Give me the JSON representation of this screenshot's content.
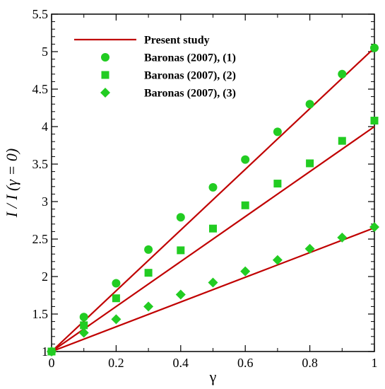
{
  "chart_data": {
    "type": "line",
    "xlabel": "γ",
    "ylabel": "I / I (γ = 0)",
    "xlim": [
      0,
      1
    ],
    "ylim": [
      1,
      5.5
    ],
    "grid": false,
    "legend_position": "top-left",
    "x_ticks": [
      0,
      0.2,
      0.4,
      0.6,
      0.8,
      1
    ],
    "x_tick_labels": [
      "0",
      "0.2",
      "0.4",
      "0.6",
      "0.8",
      "1"
    ],
    "y_ticks": [
      1,
      1.5,
      2,
      2.5,
      3,
      3.5,
      4,
      4.5,
      5,
      5.5
    ],
    "y_tick_labels": [
      "1",
      "1.5",
      "2",
      "2.5",
      "3",
      "3.5",
      "4",
      "4.5",
      "5",
      "5.5"
    ],
    "series": [
      {
        "name": "Present study",
        "kind": "line",
        "color": "#c00000",
        "x": [
          0,
          1
        ],
        "y": [
          1,
          5.05
        ]
      },
      {
        "kind": "line",
        "color": "#c00000",
        "x": [
          0,
          1
        ],
        "y": [
          1,
          4.0
        ]
      },
      {
        "kind": "line",
        "color": "#c00000",
        "x": [
          0,
          1
        ],
        "y": [
          1,
          2.65
        ]
      },
      {
        "name": "Baronas (2007), (1)",
        "kind": "marker",
        "marker": "circle",
        "color": "#22cc22",
        "x": [
          0,
          0.1,
          0.2,
          0.3,
          0.4,
          0.5,
          0.6,
          0.7,
          0.8,
          0.9,
          1.0
        ],
        "y": [
          1.0,
          1.46,
          1.91,
          2.36,
          2.79,
          3.19,
          3.56,
          3.93,
          4.3,
          4.7,
          5.05
        ]
      },
      {
        "name": "Baronas (2007), (2)",
        "kind": "marker",
        "marker": "square",
        "color": "#22cc22",
        "x": [
          0,
          0.1,
          0.2,
          0.3,
          0.4,
          0.5,
          0.6,
          0.7,
          0.8,
          0.9,
          1.0
        ],
        "y": [
          1.0,
          1.35,
          1.71,
          2.05,
          2.35,
          2.64,
          2.95,
          3.24,
          3.51,
          3.81,
          4.08
        ]
      },
      {
        "name": "Baronas (2007), (3)",
        "kind": "marker",
        "marker": "diamond",
        "color": "#22cc22",
        "x": [
          0,
          0.1,
          0.2,
          0.3,
          0.4,
          0.5,
          0.6,
          0.7,
          0.8,
          0.9,
          1.0
        ],
        "y": [
          1.0,
          1.25,
          1.43,
          1.6,
          1.76,
          1.92,
          2.07,
          2.22,
          2.37,
          2.52,
          2.66
        ]
      }
    ],
    "legend": [
      {
        "label": "Present study",
        "symbol": "line",
        "color": "#c00000"
      },
      {
        "label": "Baronas (2007), (1)",
        "symbol": "circle",
        "color": "#22cc22"
      },
      {
        "label": "Baronas (2007), (2)",
        "symbol": "square",
        "color": "#22cc22"
      },
      {
        "label": "Baronas (2007), (3)",
        "symbol": "diamond",
        "color": "#22cc22"
      }
    ]
  }
}
